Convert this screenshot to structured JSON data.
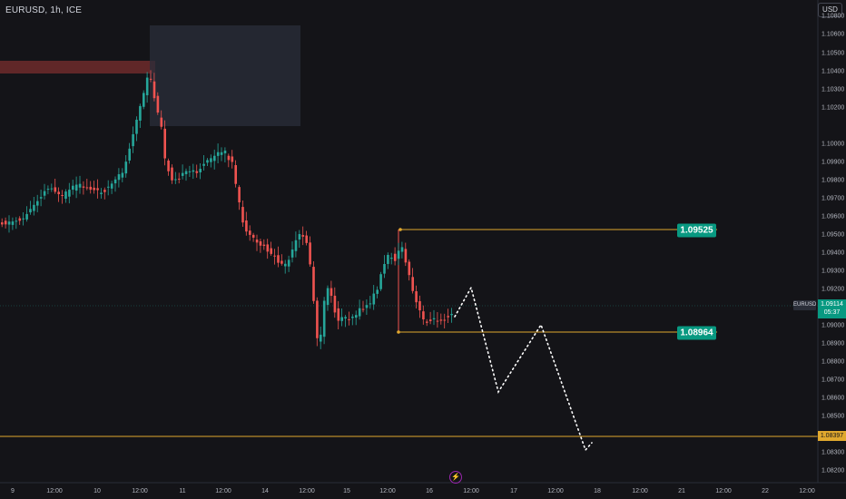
{
  "header": {
    "symbol": "EURUSD, 1h, ICE",
    "currency": "USD"
  },
  "price_axis": {
    "ticks": [
      "1.10800",
      "1.10600",
      "1.10500",
      "1.10400",
      "1.10300",
      "1.10200",
      "1.10000",
      "1.09900",
      "1.09800",
      "1.09700",
      "1.09600",
      "1.09500",
      "1.09400",
      "1.09300",
      "1.09200",
      "1.09000",
      "1.08900",
      "1.08800",
      "1.08700",
      "1.08600",
      "1.08500",
      "1.08300",
      "1.08200"
    ],
    "symbol_label": "EURUSD",
    "last_price": "1.09114",
    "countdown": "05:37",
    "horizontal_line_price": "1.08397"
  },
  "time_axis": {
    "ticks": [
      "9",
      "12:00",
      "10",
      "12:00",
      "11",
      "12:00",
      "14",
      "12:00",
      "15",
      "12:00",
      "16",
      "12:00",
      "17",
      "12:00",
      "18",
      "12:00",
      "21",
      "12:00",
      "22",
      "12:00"
    ]
  },
  "annotations": {
    "upper_level": "1.09525",
    "lower_level": "1.08964"
  },
  "colors": {
    "background": "#141418",
    "bull": "#26a69a",
    "bear": "#ef5350",
    "level_line": "#e0a82e",
    "badge": "#089981",
    "supply_zone": "#7a2e2e",
    "box_zone": "#2a2e39",
    "projection": "#ffffff"
  },
  "icons": {
    "flash": "flash-icon"
  }
}
